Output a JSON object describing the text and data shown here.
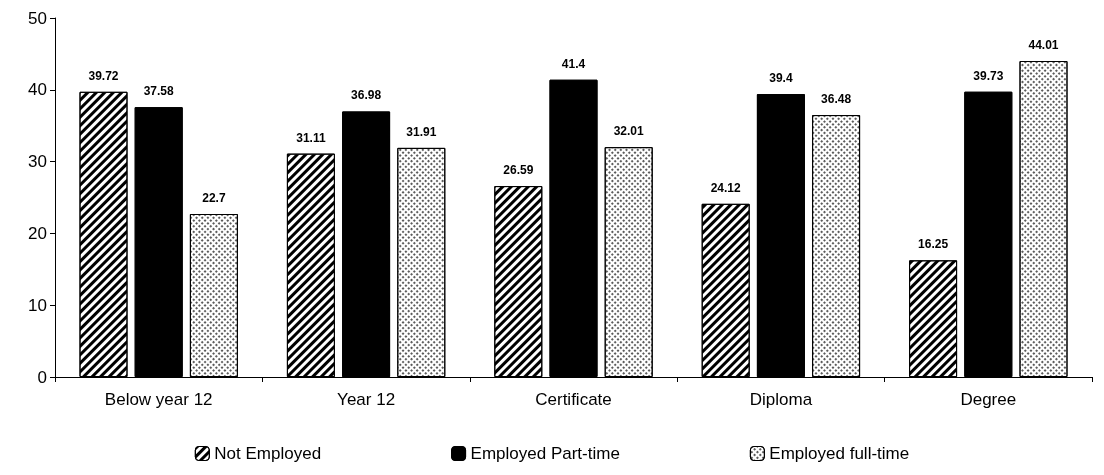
{
  "chart_data": {
    "type": "bar",
    "categories": [
      "Below year 12",
      "Year 12",
      "Certificate",
      "Diploma",
      "Degree"
    ],
    "series": [
      {
        "name": "Not Employed",
        "color": "#ffffff",
        "values": [
          39.72,
          31.11,
          26.59,
          24.12,
          16.25
        ]
      },
      {
        "name": "Employed Part-time",
        "color": "#000000",
        "values": [
          37.58,
          36.98,
          41.4,
          39.4,
          39.73
        ]
      },
      {
        "name": "Employed full-time",
        "color": "#ffffff",
        "values": [
          22.7,
          31.91,
          32.01,
          36.48,
          44.01
        ]
      }
    ],
    "ylim": [
      0,
      50
    ],
    "yticks": [
      0,
      10,
      20,
      30,
      40,
      50
    ],
    "grid": false,
    "legend": "bottom",
    "data_labels": true
  }
}
